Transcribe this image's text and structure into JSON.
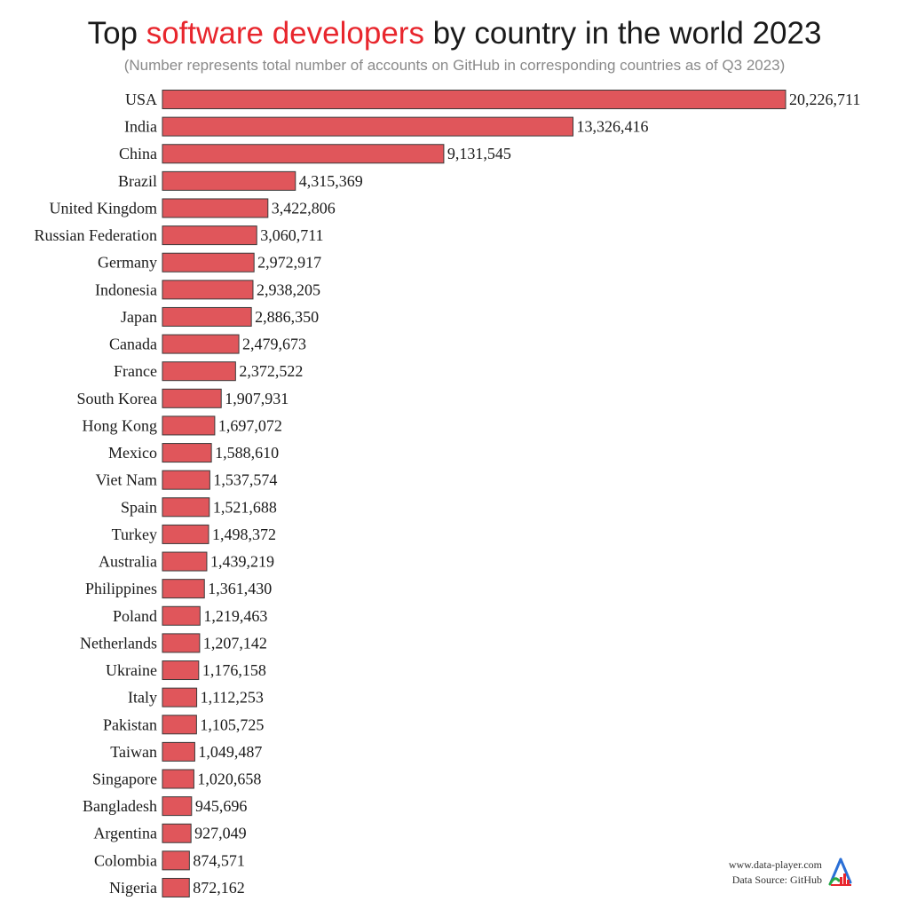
{
  "header": {
    "title_prefix": "Top ",
    "title_highlight": "software developers",
    "title_suffix": " by country in the world 2023",
    "subtitle": "(Number represents total number of accounts on GitHub in corresponding countries as of Q3 2023)"
  },
  "footer": {
    "website": "www.data-player.com",
    "source": "Data Source: GitHub"
  },
  "logo": {
    "icon": "data-player-logo-icon"
  },
  "colors": {
    "bar": "#e0565b",
    "bar_stroke": "#3a3a3a",
    "highlight": "#e8262d"
  },
  "chart_data": {
    "type": "bar",
    "orientation": "horizontal",
    "title": "Top software developers by country in the world 2023",
    "subtitle": "(Number represents total number of accounts on GitHub in corresponding countries as of Q3 2023)",
    "xlabel": "",
    "ylabel": "",
    "grid": false,
    "legend": "none",
    "categories": [
      "USA",
      "India",
      "China",
      "Brazil",
      "United Kingdom",
      "Russian Federation",
      "Germany",
      "Indonesia",
      "Japan",
      "Canada",
      "France",
      "South Korea",
      "Hong Kong",
      "Mexico",
      "Viet Nam",
      "Spain",
      "Turkey",
      "Australia",
      "Philippines",
      "Poland",
      "Netherlands",
      "Ukraine",
      "Italy",
      "Pakistan",
      "Taiwan",
      "Singapore",
      "Bangladesh",
      "Argentina",
      "Colombia",
      "Nigeria"
    ],
    "values": [
      20226711,
      13326416,
      9131545,
      4315369,
      3422806,
      3060711,
      2972917,
      2938205,
      2886350,
      2479673,
      2372522,
      1907931,
      1697072,
      1588610,
      1537574,
      1521688,
      1498372,
      1439219,
      1361430,
      1219463,
      1207142,
      1176158,
      1112253,
      1105725,
      1049487,
      1020658,
      945696,
      927049,
      874571,
      872162
    ],
    "labels": [
      "20,226,711",
      "13,326,416",
      "9,131,545",
      "4,315,369",
      "3,422,806",
      "3,060,711",
      "2,972,917",
      "2,938,205",
      "2,886,350",
      "2,479,673",
      "2,372,522",
      "1,907,931",
      "1,697,072",
      "1,588,610",
      "1,537,574",
      "1,521,688",
      "1,498,372",
      "1,439,219",
      "1,361,430",
      "1,219,463",
      "1,207,142",
      "1,176,158",
      "1,112,253",
      "1,105,725",
      "1,049,487",
      "1,020,658",
      "945,696",
      "927,049",
      "874,571",
      "872,162"
    ]
  }
}
